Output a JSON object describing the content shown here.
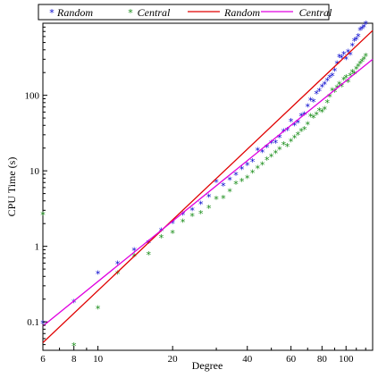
{
  "chart_data": {
    "type": "scatter",
    "xlabel": "Degree",
    "ylabel": "CPU Time (s)",
    "xscale": "log",
    "yscale": "log",
    "xlim": [
      6,
      128
    ],
    "ylim": [
      0.042,
      900
    ],
    "grid": false,
    "legend_position": "top",
    "x_ticks": [
      6,
      8,
      10,
      20,
      40,
      60,
      80,
      100
    ],
    "x_tick_labels": [
      "6",
      "8",
      "10",
      "20",
      "40",
      "60",
      "80",
      "100"
    ],
    "y_ticks": [
      0.1,
      1,
      10,
      100
    ],
    "y_tick_labels": [
      "0.1",
      "1",
      "10",
      "100"
    ],
    "legend": [
      {
        "label": "Random",
        "marker": "star",
        "color": "#0000cc"
      },
      {
        "label": "Central",
        "marker": "star",
        "color": "#138a13"
      },
      {
        "label": "Random",
        "marker": "line",
        "color": "#e00000"
      },
      {
        "label": "Central",
        "marker": "line",
        "color": "#e000e0"
      }
    ],
    "series": [
      {
        "name": "Random",
        "kind": "points",
        "color": "#0000cc",
        "x": [
          6,
          8,
          10,
          12,
          14,
          16,
          18,
          20,
          22,
          24,
          26,
          28,
          30,
          32,
          34,
          36,
          38,
          40,
          42,
          44,
          46,
          48,
          50,
          52,
          54,
          56,
          58,
          60,
          62,
          64,
          66,
          68,
          70,
          72,
          74,
          76,
          78,
          80,
          82,
          84,
          86,
          88,
          90,
          92,
          94,
          96,
          98,
          100,
          102,
          104,
          106,
          108,
          110,
          112,
          114,
          116,
          118,
          120
        ],
        "y": [
          0.095,
          0.18,
          0.43,
          0.58,
          0.88,
          1.1,
          1.6,
          2.0,
          2.6,
          3.0,
          3.6,
          4.5,
          7.0,
          6.3,
          7.5,
          8.8,
          10.5,
          11.8,
          13.2,
          18.5,
          17.5,
          20.5,
          23.0,
          23.5,
          27.5,
          33.0,
          34.0,
          45.0,
          40.0,
          43.0,
          53.0,
          55.0,
          70.0,
          85.0,
          82.0,
          105.0,
          113.0,
          128.0,
          140.0,
          155.0,
          170.0,
          180.0,
          210.0,
          260.0,
          320.0,
          310.0,
          345.0,
          300.0,
          370.0,
          340.0,
          450.0,
          520.0,
          540.0,
          600.0,
          720.0,
          750.0,
          800.0,
          870.0
        ]
      },
      {
        "name": "Central",
        "kind": "points",
        "color": "#138a13",
        "x": [
          6,
          8,
          10,
          12,
          14,
          16,
          18,
          20,
          22,
          24,
          26,
          28,
          30,
          32,
          34,
          36,
          38,
          40,
          42,
          44,
          46,
          48,
          50,
          52,
          54,
          56,
          58,
          60,
          62,
          64,
          66,
          68,
          70,
          72,
          74,
          76,
          78,
          80,
          82,
          84,
          86,
          88,
          90,
          92,
          94,
          96,
          98,
          100,
          102,
          104,
          106,
          108,
          110,
          112,
          114,
          116,
          118,
          120
        ],
        "y": [
          2.6,
          0.048,
          0.15,
          0.43,
          0.73,
          0.78,
          1.3,
          1.5,
          2.1,
          2.5,
          2.7,
          3.2,
          4.2,
          4.3,
          5.3,
          6.7,
          7.2,
          8.0,
          9.4,
          10.8,
          12.0,
          14.0,
          15.3,
          17.0,
          19.0,
          22.0,
          21.0,
          24.5,
          27.0,
          30.0,
          33.5,
          35.0,
          41.0,
          52.0,
          50.0,
          55.0,
          62.0,
          60.0,
          65.0,
          80.0,
          95.0,
          115.0,
          110.0,
          125.0,
          140.0,
          130.0,
          160.0,
          170.0,
          150.0,
          180.0,
          200.0,
          190.0,
          220.0,
          240.0,
          260.0,
          280.0,
          300.0,
          330.0
        ]
      },
      {
        "name": "Random",
        "kind": "line",
        "color": "#e00000",
        "x": [
          6,
          128
        ],
        "y": [
          0.053,
          720
        ]
      },
      {
        "name": "Central",
        "kind": "line",
        "color": "#e000e0",
        "x": [
          6,
          128
        ],
        "y": [
          0.088,
          300
        ]
      }
    ]
  }
}
